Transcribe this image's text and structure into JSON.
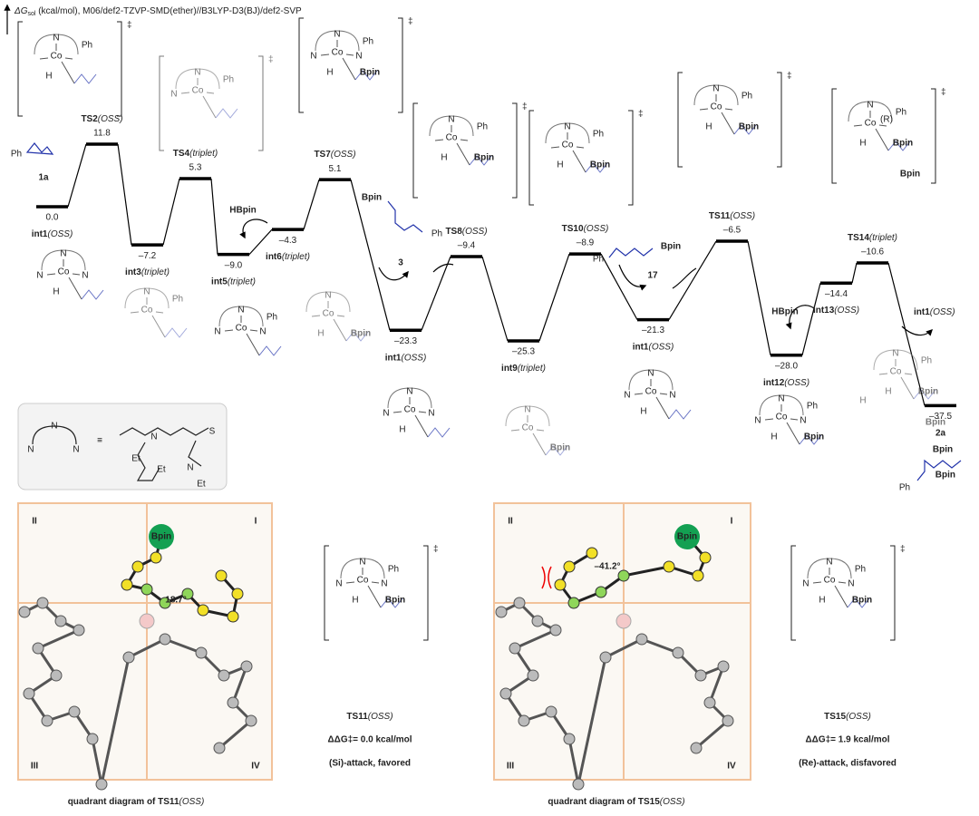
{
  "axis_label": {
    "symbol": "ΔG",
    "subscript": "sol",
    "text": " (kcal/mol), M06/def2-TZVP-SMD(ether)//B3LYP-D3(BJ)/def2-SVP"
  },
  "levels": [
    {
      "name": "int1",
      "state": "(OSS)",
      "energy": 0.0,
      "energy_label": "0.0"
    },
    {
      "name": "TS2",
      "state": "(OSS)",
      "energy": 11.8,
      "energy_label": "11.8"
    },
    {
      "name": "int3",
      "state": "(triplet)",
      "energy": -7.2,
      "energy_label": "–7.2"
    },
    {
      "name": "TS4",
      "state": "(triplet)",
      "energy": 5.3,
      "energy_label": "5.3"
    },
    {
      "name": "int5",
      "state": "(triplet)",
      "energy": -9.0,
      "energy_label": "–9.0"
    },
    {
      "name": "int6",
      "state": "(triplet)",
      "energy": -4.3,
      "energy_label": "–4.3"
    },
    {
      "name": "TS7",
      "state": "(OSS)",
      "energy": 5.1,
      "energy_label": "5.1"
    },
    {
      "name": "int1",
      "state": "(OSS)",
      "energy": -23.3,
      "energy_label": "–23.3"
    },
    {
      "name": "TS8",
      "state": "(OSS)",
      "energy": -9.4,
      "energy_label": "–9.4"
    },
    {
      "name": "int9",
      "state": "(triplet)",
      "energy": -25.3,
      "energy_label": "–25.3"
    },
    {
      "name": "TS10",
      "state": "(OSS)",
      "energy": -8.9,
      "energy_label": "–8.9"
    },
    {
      "name": "int1",
      "state": "(OSS)",
      "energy": -21.3,
      "energy_label": "–21.3"
    },
    {
      "name": "TS11",
      "state": "(OSS)",
      "energy": -6.5,
      "energy_label": "–6.5"
    },
    {
      "name": "int12",
      "state": "(OSS)",
      "energy": -28.0,
      "energy_label": "–28.0"
    },
    {
      "name": "int13",
      "state": "(OSS)",
      "energy": -14.4,
      "energy_label": "–14.4"
    },
    {
      "name": "TS14",
      "state": "(triplet)",
      "energy": -10.6,
      "energy_label": "–10.6"
    },
    {
      "name": "2a",
      "energy": -37.5,
      "energy_label": "–37.5"
    }
  ],
  "structures": [
    {
      "labels": [
        "N",
        "Co",
        "H",
        "Ph"
      ],
      "dagger": "‡"
    },
    {
      "labels": [
        "N",
        "N",
        "Co",
        "Ph"
      ],
      "dagger": "‡"
    },
    {
      "labels": [
        "N",
        "N",
        "Co",
        "N",
        "H",
        "Bpin",
        "Ph"
      ],
      "dagger": "‡"
    },
    {
      "labels": [
        "N",
        "Co",
        "H",
        "Ph",
        "Bpin"
      ],
      "dagger": "‡"
    },
    {
      "labels": [
        "N",
        "Co",
        "Ph",
        "H",
        "Bpin"
      ],
      "dagger": "‡"
    },
    {
      "labels": [
        "N",
        "Co",
        "H",
        "Ph",
        "Bpin"
      ],
      "dagger": "‡"
    },
    {
      "labels": [
        "N",
        "Co",
        "H",
        "(R)",
        "Ph",
        "Bpin",
        "Bpin"
      ],
      "dagger": "‡"
    },
    {
      "labels": [
        "N",
        "N",
        "Co",
        "N",
        "H"
      ]
    },
    {
      "labels": [
        "N",
        "Co",
        "Ph"
      ]
    },
    {
      "labels": [
        "N",
        "N",
        "Co",
        "N",
        "Ph"
      ]
    },
    {
      "labels": [
        "N",
        "Co",
        "H",
        "Bpin"
      ]
    },
    {
      "labels": [
        "N",
        "N",
        "Co",
        "N",
        "H"
      ]
    },
    {
      "labels": [
        "N",
        "Co",
        "Bpin"
      ]
    },
    {
      "labels": [
        "N",
        "N",
        "Co",
        "N",
        "H"
      ]
    },
    {
      "labels": [
        "N",
        "N",
        "Co",
        "N",
        "H",
        "Ph",
        "Bpin"
      ]
    },
    {
      "labels": [
        "N",
        "Co",
        "H",
        "Bpin",
        "H",
        "Ph",
        "Bpin"
      ]
    }
  ],
  "species": [
    {
      "label": "1a",
      "atoms": [
        "Ph"
      ]
    },
    {
      "label": "3",
      "atoms": [
        "Bpin",
        "Ph"
      ]
    },
    {
      "label": "17",
      "atoms": [
        "Ph",
        "Bpin"
      ]
    },
    {
      "atoms": [
        "Bpin",
        "Ph",
        "Bpin"
      ]
    }
  ],
  "annotations": [
    {
      "text": "HBpin"
    },
    {
      "text": "HBpin"
    },
    {
      "name": "int1",
      "state": "(OSS)"
    }
  ],
  "ligand": {
    "labels": [
      "N",
      "N",
      "N",
      "≡",
      "N",
      "Et",
      "Et",
      "N",
      "S",
      "Et"
    ]
  },
  "quadrants": [
    {
      "labels": [
        "II",
        "I",
        "III",
        "IV"
      ],
      "bpin": "Bpin",
      "angle": "18.7°",
      "caption": {
        "prefix": "quadrant diagram of ",
        "name": "TS11",
        "state": "(OSS)"
      },
      "ts": {
        "name": "TS11",
        "state": "(OSS)",
        "ddg": "ΔΔG‡= 0.0 kcal/mol",
        "attack": "(Si)-attack, favored",
        "labels": [
          "N",
          "N",
          "Co",
          "N",
          "H",
          "Ph",
          "Bpin"
        ],
        "dagger": "‡"
      }
    },
    {
      "labels": [
        "II",
        "I",
        "III",
        "IV"
      ],
      "bpin": "Bpin",
      "angle": "–41.2°",
      "caption": {
        "prefix": "quadrant diagram of ",
        "name": "TS15",
        "state": "(OSS)"
      },
      "ts": {
        "name": "TS15",
        "state": "(OSS)",
        "ddg": "ΔΔG‡= 1.9 kcal/mol",
        "attack": "(Re)-attack, disfavored",
        "labels": [
          "N",
          "N",
          "Co",
          "N",
          "H",
          "Ph",
          "Bpin"
        ],
        "dagger": "‡"
      }
    }
  ]
}
